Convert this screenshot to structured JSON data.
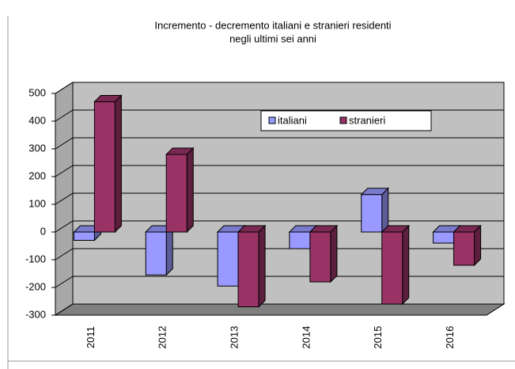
{
  "chart_data": {
    "type": "bar3d",
    "title": [
      "Incremento - decremento italiani e stranieri residenti",
      "negli ultimi sei anni"
    ],
    "categories": [
      "2011",
      "2012",
      "2013",
      "2014",
      "2015",
      "2016"
    ],
    "series": [
      {
        "name": "italiani",
        "color": "#9999ff",
        "values": [
          -30,
          -155,
          -195,
          -60,
          135,
          -40
        ]
      },
      {
        "name": "stranieri",
        "color": "#993366",
        "values": [
          470,
          280,
          -270,
          -180,
          -260,
          -120
        ]
      }
    ],
    "ylim": [
      -300,
      500
    ],
    "yticks": [
      -300,
      -200,
      -100,
      0,
      100,
      200,
      300,
      400,
      500
    ],
    "grid": true
  }
}
